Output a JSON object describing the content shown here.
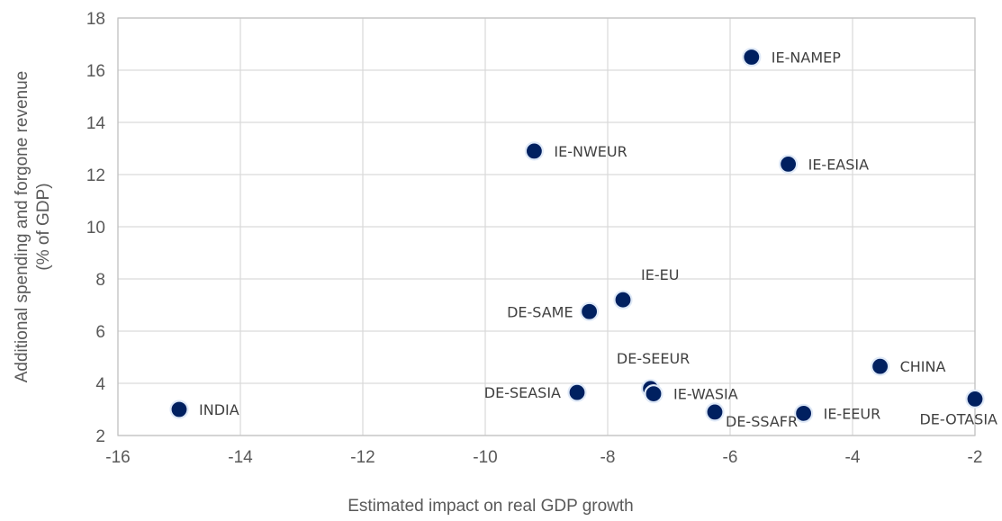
{
  "chart_data": {
    "type": "scatter",
    "title": "",
    "xlabel": "Estimated impact on real GDP growth",
    "ylabel_lines": [
      "Additional spending and forgone revenue",
      "(% of GDP)"
    ],
    "xlim": [
      -16,
      -2
    ],
    "ylim": [
      2,
      18
    ],
    "xticks": [
      -16,
      -14,
      -12,
      -10,
      -8,
      -6,
      -4,
      -2
    ],
    "yticks": [
      2,
      4,
      6,
      8,
      10,
      12,
      14,
      16,
      18
    ],
    "grid": true,
    "legend": "none",
    "marker_color": "#002060",
    "points": [
      {
        "label": "INDIA",
        "x": -15.0,
        "y": 3.0,
        "label_pos": "right"
      },
      {
        "label": "IE-NWEUR",
        "x": -9.2,
        "y": 12.9,
        "label_pos": "right"
      },
      {
        "label": "IE-NAMEP",
        "x": -5.65,
        "y": 16.5,
        "label_pos": "right"
      },
      {
        "label": "IE-EASIA",
        "x": -5.05,
        "y": 12.4,
        "label_pos": "right"
      },
      {
        "label": "IE-EU",
        "x": -7.75,
        "y": 7.2,
        "label_pos": "above-right"
      },
      {
        "label": "DE-SAME",
        "x": -8.3,
        "y": 6.75,
        "label_pos": "left"
      },
      {
        "label": "DE-SEEUR",
        "x": -7.3,
        "y": 3.8,
        "label_pos": "above"
      },
      {
        "label": "IE-WASIA",
        "x": -7.25,
        "y": 3.6,
        "label_pos": "right"
      },
      {
        "label": "DE-SEASIA",
        "x": -8.5,
        "y": 3.65,
        "label_pos": "left"
      },
      {
        "label": "DE-SSAFR",
        "x": -6.25,
        "y": 2.9,
        "label_pos": "below-right"
      },
      {
        "label": "IE-EEUR",
        "x": -4.8,
        "y": 2.85,
        "label_pos": "right"
      },
      {
        "label": "CHINA",
        "x": -3.55,
        "y": 4.65,
        "label_pos": "right"
      },
      {
        "label": "DE-OTASIA",
        "x": -2.0,
        "y": 3.4,
        "label_pos": "below-left"
      }
    ]
  }
}
